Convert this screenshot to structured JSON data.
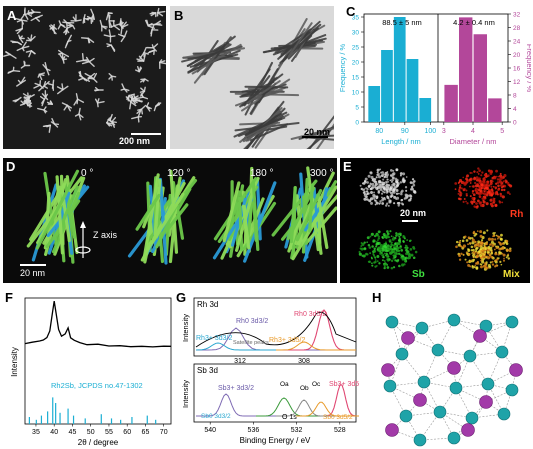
{
  "panels": {
    "A": {
      "label": "A",
      "scale": "200 nm"
    },
    "B": {
      "label": "B",
      "scale": "20 nm"
    },
    "C": {
      "label": "C"
    },
    "D": {
      "label": "D",
      "angles": [
        "0 °",
        "120 °",
        "180 °",
        "300 °"
      ],
      "axis_label": "Z axis",
      "scale": "20 nm"
    },
    "E": {
      "label": "E",
      "scale": "20 nm",
      "maps": [
        "Rh",
        "Sb",
        "Mix"
      ]
    },
    "F": {
      "label": "F"
    },
    "G": {
      "label": "G"
    },
    "H": {
      "label": "H"
    }
  },
  "chart_data": [
    {
      "id": "C-length",
      "type": "bar",
      "categories": [
        "80",
        "85",
        "90",
        "95",
        "100"
      ],
      "bar_centers": [
        78,
        83,
        88,
        93,
        98
      ],
      "values": [
        12,
        24,
        35,
        21,
        8
      ],
      "xlabel": "Length / nm",
      "ylabel": "Frequency / %",
      "xticks": [
        80,
        90,
        100
      ],
      "yticks": [
        0,
        5,
        10,
        15,
        20,
        25,
        30,
        35
      ],
      "ylim": [
        0,
        36
      ],
      "annotation": "88.5 ± 5 nm",
      "color": "#1aaed3"
    },
    {
      "id": "C-diameter",
      "type": "bar",
      "categories": [
        "3.5",
        "4.0",
        "4.5",
        "5.0"
      ],
      "bar_centers": [
        3.25,
        3.75,
        4.25,
        4.75
      ],
      "values": [
        11,
        31,
        26,
        7
      ],
      "xlabel": "Diameter / nm",
      "ylabel": "Frequency / %",
      "xticks": [
        3,
        4,
        5
      ],
      "yticks": [
        0,
        4,
        8,
        12,
        16,
        20,
        24,
        28,
        32
      ],
      "ylim": [
        0,
        32
      ],
      "annotation": "4.2 ± 0.4 nm",
      "color": "#b3479a"
    },
    {
      "id": "F-xrd",
      "type": "line",
      "xlabel": "2θ / degree",
      "ylabel": "Intensity",
      "xticks": [
        35,
        40,
        45,
        50,
        55,
        60,
        65,
        70
      ],
      "xlim": [
        32,
        72
      ],
      "x": [
        32,
        34,
        36,
        37,
        38,
        38.8,
        39.5,
        40,
        40.5,
        41.2,
        42,
        43,
        43.8,
        44.5,
        45.5,
        47,
        49,
        52,
        55,
        58,
        61,
        64,
        67,
        70,
        72
      ],
      "y": [
        0.42,
        0.43,
        0.44,
        0.45,
        0.48,
        0.6,
        0.85,
        1.0,
        0.85,
        0.6,
        0.5,
        0.55,
        0.62,
        0.5,
        0.44,
        0.41,
        0.4,
        0.39,
        0.38,
        0.38,
        0.37,
        0.37,
        0.37,
        0.36,
        0.36
      ],
      "reference": {
        "label": "Rh2Sb, JCPDS no.47-1302",
        "peaks": [
          {
            "x": 33.2,
            "h": 0.25
          },
          {
            "x": 35.1,
            "h": 0.15
          },
          {
            "x": 36.5,
            "h": 0.3
          },
          {
            "x": 38.2,
            "h": 0.45
          },
          {
            "x": 39.6,
            "h": 0.95
          },
          {
            "x": 40.4,
            "h": 0.75
          },
          {
            "x": 41.6,
            "h": 0.4
          },
          {
            "x": 43.8,
            "h": 0.55
          },
          {
            "x": 45.3,
            "h": 0.3
          },
          {
            "x": 48.5,
            "h": 0.2
          },
          {
            "x": 52.9,
            "h": 0.35
          },
          {
            "x": 55.7,
            "h": 0.2
          },
          {
            "x": 58.2,
            "h": 0.15
          },
          {
            "x": 61.3,
            "h": 0.25
          },
          {
            "x": 65.5,
            "h": 0.3
          },
          {
            "x": 67.8,
            "h": 0.15
          }
        ],
        "color": "#1aaed3"
      }
    },
    {
      "id": "G-xps",
      "type": "line",
      "xlabel": "Binding Energy / eV",
      "ylabel": "Intensity",
      "xticks": [
        540,
        536,
        532,
        528
      ],
      "xlim": [
        541.5,
        526.5
      ],
      "sub": [
        {
          "title": "Rh 3d",
          "top_ticks": [
            "312",
            "308"
          ]
        },
        {
          "title": "Sb 3d"
        }
      ],
      "labels": {
        "rh0_52": "Rh0 3d5/2",
        "rh0_32": "Rh0 3d3/2",
        "rh3_32": "Rh3+ 3d3/2",
        "rh3_52": "Rh3+ 3d5/2",
        "satellite": "Satellite peaks",
        "sb3_32": "Sb3+ 3d3/2",
        "sb0_52": "Sb0 3d5/2",
        "sb0_32": "Sb0 3d3/2",
        "sb3_52": "Sb3+ 3d5/2",
        "oa": "Oa",
        "ob": "Ob",
        "oc": "Oc",
        "o1s": "O 1s"
      }
    }
  ]
}
